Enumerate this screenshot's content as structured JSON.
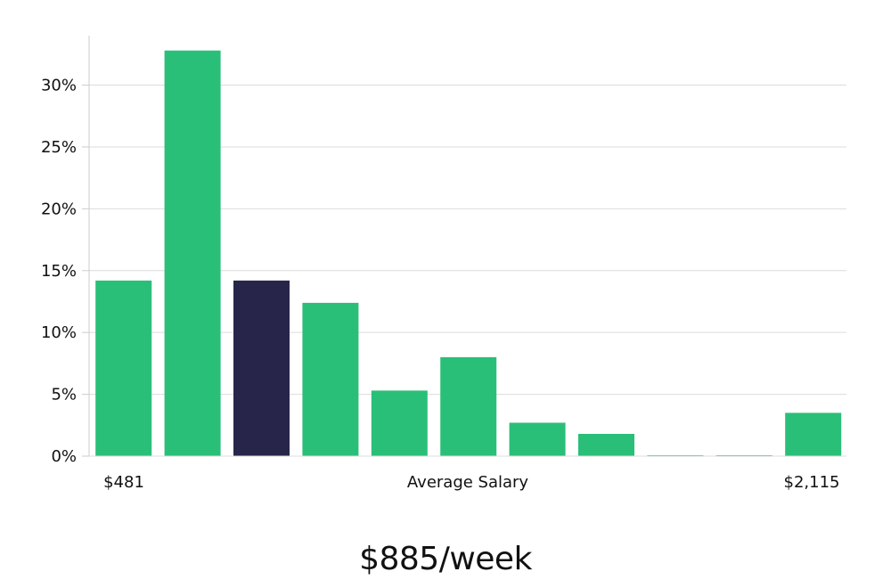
{
  "chart_data": {
    "type": "bar",
    "values": [
      14.2,
      32.8,
      14.2,
      12.4,
      5.3,
      8.0,
      2.7,
      1.8,
      0.05,
      0.05,
      3.5
    ],
    "highlight_index": 2,
    "ylim": [
      0,
      34
    ],
    "yticks": [
      0,
      5,
      10,
      15,
      20,
      25,
      30
    ],
    "ytick_suffix": "%",
    "x_left_label": "$481",
    "xlabel": "Average Salary",
    "x_right_label": "$2,115",
    "grid": true,
    "colors": {
      "bar": "#2abf78",
      "highlight": "#27264a",
      "grid": "#dcdcdc",
      "axis": "#cccccc"
    }
  },
  "summary": {
    "value_label": "$885/week"
  }
}
